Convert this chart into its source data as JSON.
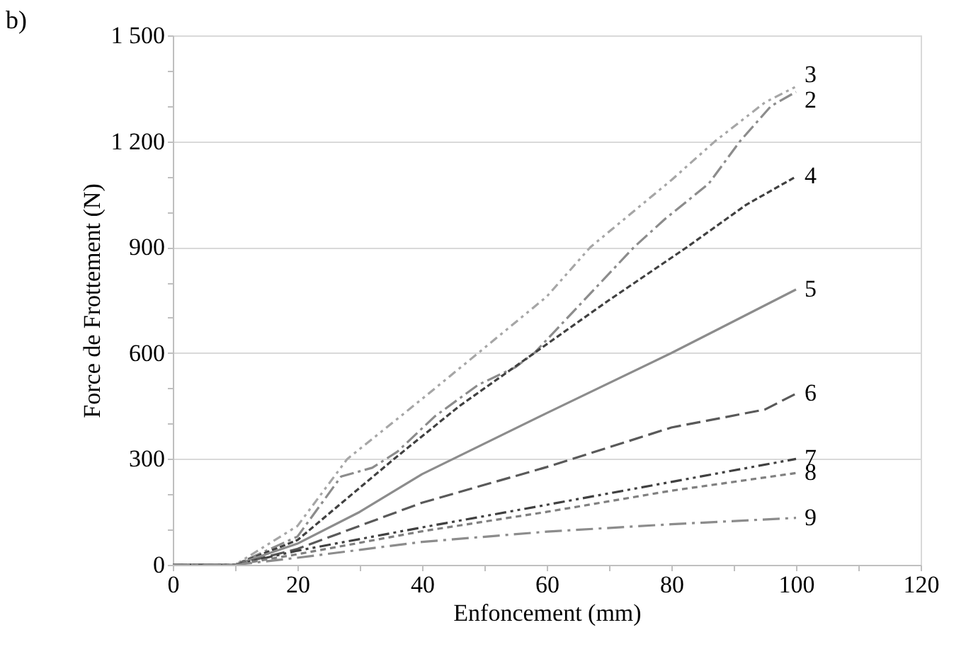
{
  "chart_data": {
    "type": "line",
    "title": "b)",
    "xlabel": "Enfoncement (mm)",
    "ylabel": "Force de Frottement (N)",
    "xlim": [
      0,
      120
    ],
    "xticks": [
      0,
      {
        "value": 10,
        "label": null
      },
      20,
      {
        "value": 30,
        "label": null
      },
      40,
      {
        "value": 50,
        "label": null
      },
      60,
      {
        "value": 70,
        "label": null
      },
      80,
      {
        "value": 90,
        "label": null
      },
      100,
      {
        "value": 110,
        "label": null
      },
      120
    ],
    "ylim": [
      0,
      1500
    ],
    "yticks": [
      0,
      {
        "value": 100,
        "label": null
      },
      {
        "value": 200,
        "label": null
      },
      300,
      {
        "value": 400,
        "label": null
      },
      {
        "value": 500,
        "label": null
      },
      600,
      {
        "value": 700,
        "label": null
      },
      {
        "value": 800,
        "label": null
      },
      900,
      {
        "value": 1000,
        "label": null
      },
      {
        "value": 1100,
        "label": null
      },
      {
        "value": 1200,
        "label": "1 200"
      },
      {
        "value": 1300,
        "label": null
      },
      {
        "value": 1400,
        "label": null
      },
      {
        "value": 1500,
        "label": "1 500"
      }
    ],
    "grid": "y",
    "marker": "none",
    "legend": false,
    "series": [
      {
        "name": "2",
        "color": "#8c8c8c",
        "line_style": "dashed",
        "x": [
          0,
          10,
          20,
          27,
          32,
          36,
          42,
          49,
          55,
          58,
          66,
          74,
          79,
          86,
          91,
          96,
          100
        ],
        "values": [
          0,
          0,
          80,
          250,
          275,
          320,
          420,
          510,
          560,
          600,
          750,
          900,
          980,
          1080,
          1200,
          1300,
          1340
        ]
      },
      {
        "name": "3",
        "color": "#a6a6a6",
        "line_style": "dashed",
        "x": [
          0,
          10,
          20,
          28,
          40,
          49,
          60,
          67,
          80,
          87,
          95,
          100
        ],
        "values": [
          0,
          0,
          110,
          300,
          470,
          600,
          760,
          900,
          1090,
          1200,
          1310,
          1355
        ]
      },
      {
        "name": "4",
        "color": "#404040",
        "line_style": "dashed",
        "x": [
          0,
          10,
          20,
          35.5,
          46,
          58,
          70,
          82.5,
          92,
          100
        ],
        "values": [
          0,
          0,
          70,
          300,
          450,
          600,
          750,
          900,
          1020,
          1100
        ]
      },
      {
        "name": "5",
        "color": "#8c8c8c",
        "line_style": "solid",
        "x": [
          0,
          10,
          20,
          30,
          40,
          60,
          80,
          100
        ],
        "values": [
          0,
          0,
          60,
          150,
          257,
          430,
          600,
          780
        ]
      },
      {
        "name": "6",
        "color": "#595959",
        "line_style": "dashed",
        "x": [
          0,
          10,
          20,
          40,
          60,
          80,
          95,
          100
        ],
        "values": [
          0,
          0,
          45,
          176,
          277,
          389,
          440,
          485
        ]
      },
      {
        "name": "7",
        "color": "#404040",
        "line_style": "dashed",
        "x": [
          0,
          10,
          20,
          40,
          60,
          80,
          100
        ],
        "values": [
          0,
          0,
          40,
          106,
          170,
          235,
          300
        ]
      },
      {
        "name": "8",
        "color": "#808080",
        "line_style": "dashed",
        "x": [
          0,
          10,
          20,
          40,
          60,
          80,
          100
        ],
        "values": [
          0,
          0,
          30,
          95,
          150,
          210,
          260
        ]
      },
      {
        "name": "9",
        "color": "#8c8c8c",
        "line_style": "dashed",
        "x": [
          0,
          10,
          20,
          40,
          60,
          80,
          100
        ],
        "values": [
          0,
          0,
          20,
          65,
          94,
          115,
          133
        ]
      }
    ]
  }
}
